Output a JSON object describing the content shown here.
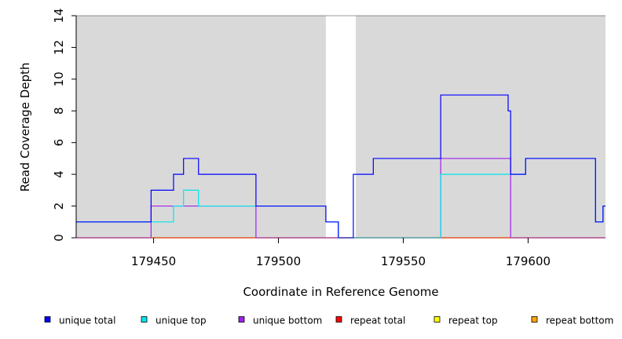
{
  "chart_data": {
    "type": "line",
    "title": "",
    "xlabel": "Coordinate in Reference Genome",
    "ylabel": "Read Coverage Depth",
    "xlim": [
      179419,
      179631
    ],
    "ylim": [
      0,
      14
    ],
    "x_ticks": [
      179450,
      179500,
      179550,
      179600
    ],
    "x_tick_labels": [
      "179450",
      "179500",
      "179550",
      "179600"
    ],
    "y_ticks": [
      0,
      2,
      4,
      6,
      8,
      10,
      12,
      14
    ],
    "y_tick_labels": [
      "0",
      "2",
      "4",
      "6",
      "8",
      "10",
      "12",
      "14"
    ],
    "grid": false,
    "legend_position": "bottom",
    "covered_regions": [
      [
        179419,
        179519
      ],
      [
        179531,
        179631
      ]
    ],
    "series": [
      {
        "name": "unique total",
        "color": "#0000ff",
        "x": [
          179419,
          179449,
          179449,
          179458,
          179458,
          179462,
          179462,
          179468,
          179468,
          179491,
          179491,
          179519,
          179519,
          179524,
          179524,
          179530,
          179530,
          179538,
          179538,
          179565,
          179565,
          179592,
          179592,
          179593,
          179593,
          179599,
          179599,
          179627,
          179627,
          179630,
          179630,
          179631
        ],
        "y": [
          1,
          1,
          3,
          3,
          4,
          4,
          5,
          5,
          4,
          4,
          2,
          2,
          1,
          1,
          0,
          0,
          4,
          4,
          5,
          5,
          9,
          9,
          8,
          8,
          4,
          4,
          5,
          5,
          1,
          1,
          2,
          2
        ]
      },
      {
        "name": "unique top",
        "color": "#00e5ee",
        "x": [
          179419,
          179449,
          179449,
          179458,
          179458,
          179462,
          179462,
          179468,
          179468,
          179519,
          179519,
          179524,
          179524,
          179531,
          179531,
          179565,
          179565,
          179593,
          179593,
          179599,
          179599,
          179627,
          179627,
          179630,
          179630,
          179631
        ],
        "y": [
          1,
          1,
          1,
          1,
          2,
          2,
          3,
          3,
          2,
          2,
          1,
          1,
          0,
          0,
          0,
          0,
          4,
          4,
          4,
          4,
          5,
          5,
          1,
          1,
          2,
          2
        ]
      },
      {
        "name": "unique bottom",
        "color": "#a020f0",
        "x": [
          179419,
          179449,
          179449,
          179491,
          179491,
          179531,
          179565,
          179565,
          179593,
          179593,
          179631
        ],
        "y": [
          0,
          0,
          2,
          2,
          0,
          0,
          0,
          5,
          5,
          0,
          0
        ]
      },
      {
        "name": "repeat total",
        "color": "#ff0000",
        "x": [
          179419,
          179631
        ],
        "y": [
          0,
          0
        ]
      },
      {
        "name": "repeat top",
        "color": "#ffff00",
        "x": [
          179419,
          179631
        ],
        "y": [
          0,
          0
        ]
      },
      {
        "name": "repeat bottom",
        "color": "#ffa500",
        "x": [
          179419,
          179631
        ],
        "y": [
          0,
          0
        ]
      }
    ],
    "colors": {
      "background_covered": "#d9d9d9",
      "axis": "#000000"
    }
  }
}
